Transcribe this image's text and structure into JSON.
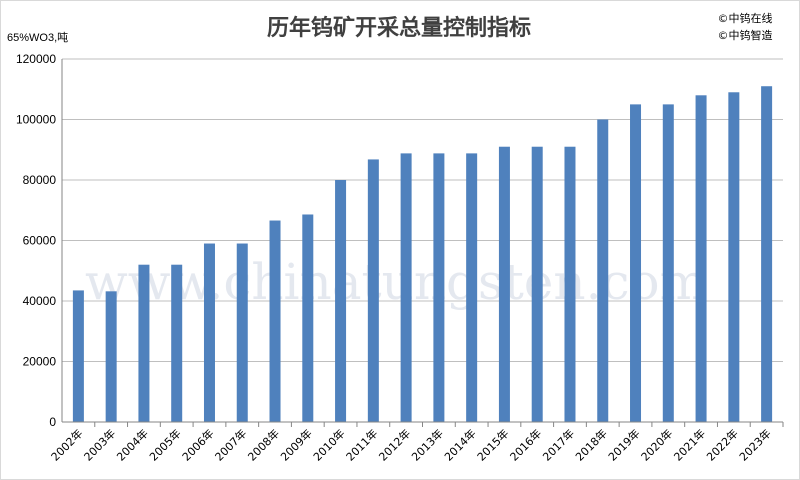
{
  "chart_data": {
    "type": "bar",
    "title": "历年钨矿开采总量控制指标",
    "unit_label": "65%WO3,吨",
    "credits": [
      "©中钨在线",
      "©中钨智造"
    ],
    "watermark": "www.chinatungsten.com",
    "categories": [
      "2002年",
      "2003年",
      "2004年",
      "2005年",
      "2006年",
      "2007年",
      "2008年",
      "2009年",
      "2010年",
      "2011年",
      "2012年",
      "2013年",
      "2014年",
      "2015年",
      "2016年",
      "2017年",
      "2018年",
      "2019年",
      "2020年",
      "2021年",
      "2022年",
      "2023年"
    ],
    "values": [
      43500,
      43200,
      52000,
      52000,
      59000,
      59000,
      66600,
      68600,
      80000,
      86800,
      88800,
      88800,
      88800,
      91000,
      91000,
      91000,
      100000,
      105000,
      105000,
      108000,
      109000,
      111000
    ],
    "ylim": [
      0,
      120000
    ],
    "yticks": [
      0,
      20000,
      40000,
      60000,
      80000,
      100000,
      120000
    ],
    "grid": true,
    "bar_color": "#4f81bd"
  }
}
